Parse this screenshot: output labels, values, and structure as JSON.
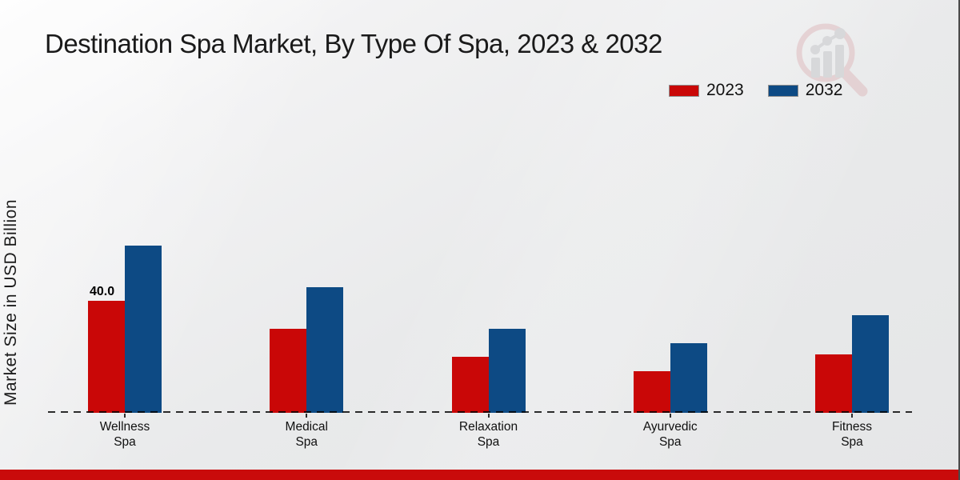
{
  "page": {
    "title": "Destination Spa Market, By Type Of Spa, 2023 & 2032"
  },
  "chart_data": {
    "type": "bar",
    "title": "Destination Spa Market, By Type Of Spa, 2023 & 2032",
    "xlabel": "",
    "ylabel": "Market Size in USD Billion",
    "unit": "USD Billion",
    "categories": [
      "Wellness Spa",
      "Medical Spa",
      "Relaxation Spa",
      "Ayurvedic Spa",
      "Fitness Spa"
    ],
    "category_label_lines": [
      [
        "Wellness",
        "Spa"
      ],
      [
        "Medical",
        "Spa"
      ],
      [
        "Relaxation",
        "Spa"
      ],
      [
        "Ayurvedic",
        "Spa"
      ],
      [
        "Fitness",
        "Spa"
      ]
    ],
    "series": [
      {
        "name": "2023",
        "color": "#c90707",
        "values": [
          40.0,
          30.0,
          20.0,
          15.0,
          21.0
        ]
      },
      {
        "name": "2032",
        "color": "#0d4a84",
        "values": [
          60.0,
          45.0,
          30.0,
          25.0,
          35.0
        ]
      }
    ],
    "annotations": [
      {
        "series_index": 0,
        "category_index": 0,
        "text": "40.0"
      }
    ],
    "ylim": [
      0,
      65
    ],
    "grid": false,
    "legend_position": "top-right",
    "baseline_style": "dashed"
  },
  "branding": {
    "watermark_icon": "magnifier-bar-chart-logo",
    "bottom_bar_color": "#c90b0b"
  }
}
